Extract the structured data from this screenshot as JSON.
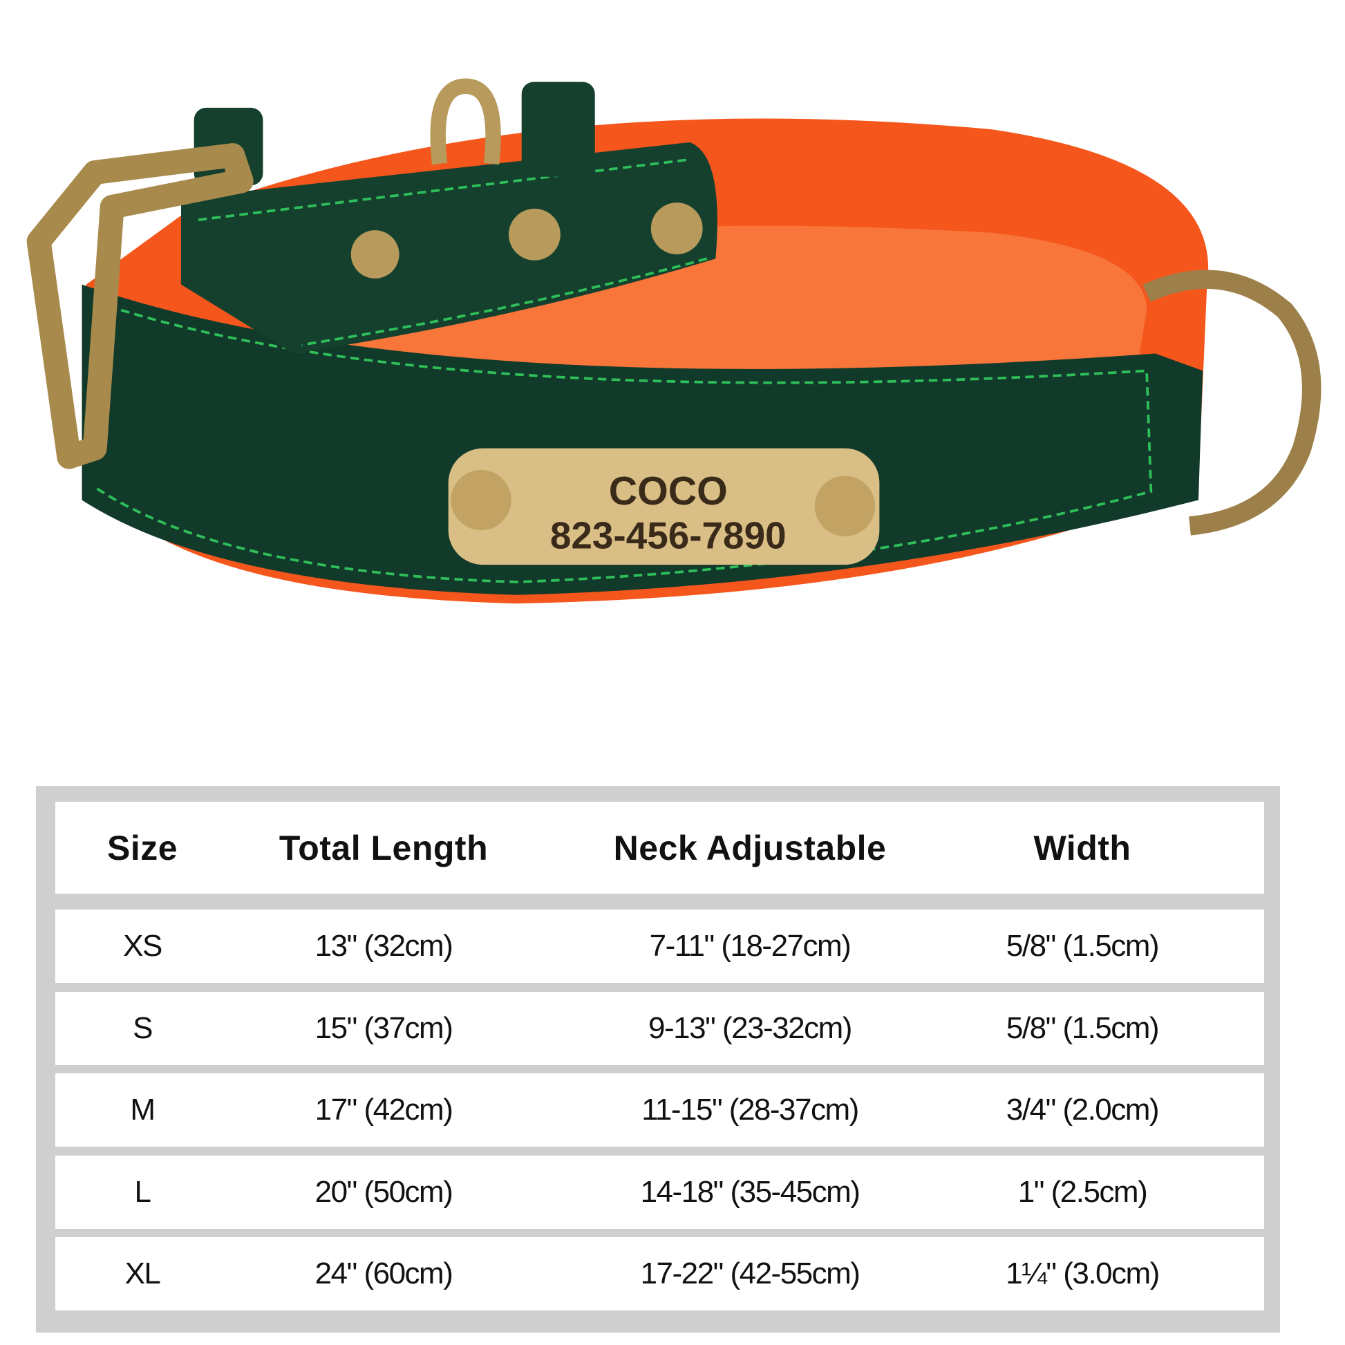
{
  "product": {
    "tag_name": "COCO",
    "tag_phone": "823-456-7890",
    "colors": {
      "leather": "#123a2a",
      "padding": "#f4561c",
      "stitch": "#2fbf5a",
      "hardware": "#b79a5c",
      "plate": "#d9bf86"
    }
  },
  "size_table": {
    "headers": [
      "Size",
      "Total Length",
      "Neck Adjustable",
      "Width"
    ],
    "rows": [
      [
        "XS",
        "13\" (32cm)",
        "7-11\" (18-27cm)",
        "5/8\" (1.5cm)"
      ],
      [
        "S",
        "15\" (37cm)",
        "9-13\" (23-32cm)",
        "5/8\" (1.5cm)"
      ],
      [
        "M",
        "17\" (42cm)",
        "11-15\" (28-37cm)",
        "3/4\" (2.0cm)"
      ],
      [
        "L",
        "20\" (50cm)",
        "14-18\" (35-45cm)",
        "1\" (2.5cm)"
      ],
      [
        "XL",
        "24\" (60cm)",
        "17-22\" (42-55cm)",
        "1¼\" (3.0cm)"
      ]
    ]
  }
}
